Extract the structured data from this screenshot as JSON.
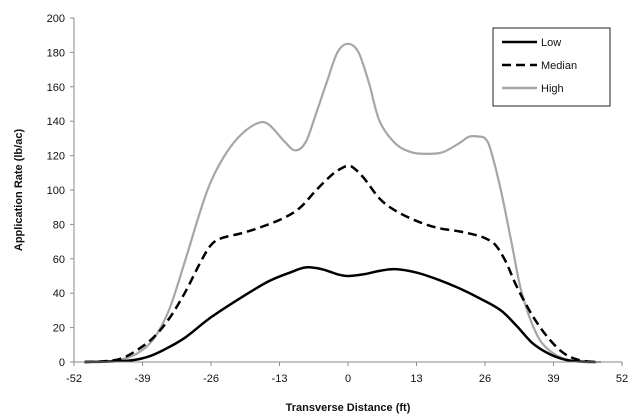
{
  "chart_data": {
    "type": "line",
    "title": "",
    "xlabel": "Transverse Distance (ft)",
    "ylabel": "Application Rate (lb/ac)",
    "xlim": [
      -52,
      52
    ],
    "ylim": [
      0,
      200
    ],
    "xticks": [
      "-52",
      "-39",
      "-26",
      "-13",
      "0",
      "13",
      "26",
      "39",
      "52"
    ],
    "yticks": [
      "0",
      "20",
      "40",
      "60",
      "80",
      "100",
      "120",
      "140",
      "160",
      "180",
      "200"
    ],
    "grid": false,
    "legend_position": "top-right",
    "series": [
      {
        "name": "Low",
        "color": "#000000",
        "dash": "solid",
        "x": [
          -50,
          -45,
          -41,
          -38,
          -35,
          -31,
          -26,
          -20,
          -15,
          -11,
          -8,
          -5,
          -2,
          0,
          3,
          6,
          9,
          13,
          17,
          21,
          25,
          29,
          32,
          35,
          38,
          41,
          44,
          47
        ],
        "y": [
          0,
          0.3,
          1,
          3,
          7,
          14,
          26,
          38,
          47,
          52,
          55,
          54,
          51,
          50,
          51,
          53,
          54,
          52,
          48,
          43,
          37,
          30,
          21,
          11,
          5,
          1.5,
          0.3,
          0
        ]
      },
      {
        "name": "Median",
        "color": "#000000",
        "dash": "dashed",
        "x": [
          -50,
          -46,
          -43,
          -40,
          -37,
          -34,
          -31,
          -28,
          -26,
          -24,
          -20,
          -16,
          -12,
          -9,
          -6,
          -3,
          -1,
          0,
          1,
          3,
          6,
          9,
          13,
          17,
          21,
          24,
          26,
          28,
          30,
          32,
          35,
          38,
          41,
          44,
          47
        ],
        "y": [
          0,
          0.5,
          2,
          7,
          14,
          25,
          40,
          58,
          68,
          72,
          75,
          79,
          84,
          90,
          100,
          109,
          113,
          114,
          113,
          107,
          95,
          88,
          82,
          78,
          76,
          74,
          72,
          68,
          58,
          44,
          27,
          14,
          5,
          1,
          0
        ]
      },
      {
        "name": "High",
        "color": "#a6a6a6",
        "dash": "solid",
        "x": [
          -50,
          -46,
          -43,
          -40,
          -37,
          -34,
          -31,
          -28,
          -26,
          -23,
          -20,
          -17,
          -15,
          -12,
          -10,
          -8,
          -6,
          -4,
          -2,
          0,
          2,
          4,
          6,
          9,
          12,
          15,
          18,
          21,
          23,
          25,
          26,
          27,
          29,
          31,
          33,
          36,
          39,
          42,
          45,
          48
        ],
        "y": [
          0,
          0.3,
          1.5,
          5,
          13,
          30,
          58,
          88,
          105,
          122,
          133,
          139,
          138,
          128,
          123,
          128,
          145,
          163,
          180,
          185,
          180,
          162,
          140,
          127,
          122,
          121,
          122,
          127,
          131,
          131,
          130,
          124,
          100,
          70,
          40,
          15,
          5,
          1,
          0,
          0
        ]
      }
    ]
  }
}
